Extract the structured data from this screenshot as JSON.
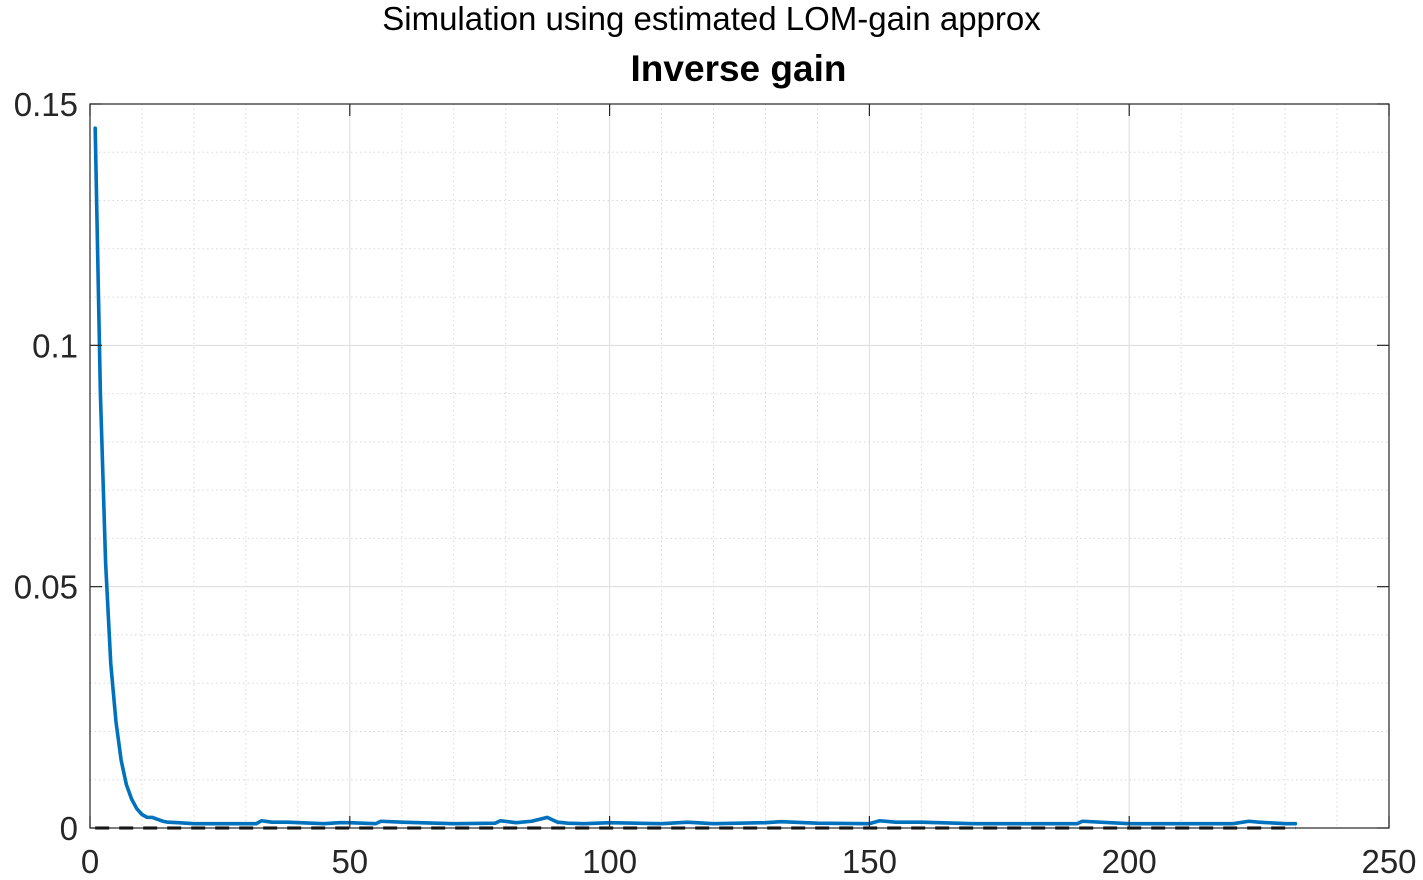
{
  "chart_data": {
    "type": "line",
    "suptitle": "Simulation using estimated LOM-gain approx",
    "title": "Inverse gain",
    "xlabel": "",
    "ylabel": "",
    "xlim": [
      0,
      250
    ],
    "ylim": [
      0,
      0.15
    ],
    "xticks": [
      0,
      50,
      100,
      150,
      200,
      250
    ],
    "yticks": [
      0,
      0.05,
      0.1,
      0.15
    ],
    "xtick_labels": [
      "0",
      "50",
      "100",
      "150",
      "200",
      "250"
    ],
    "ytick_labels": [
      "0",
      "0.05",
      "0.1",
      "0.15"
    ],
    "grid": true,
    "minor_grid": true,
    "series": [
      {
        "color": "#0072BD",
        "style": "solid",
        "x": [
          1,
          2,
          3,
          4,
          5,
          6,
          7,
          8,
          9,
          10,
          11,
          12,
          13,
          14,
          15,
          17,
          20,
          25,
          30,
          32,
          33,
          35,
          38,
          45,
          48,
          50,
          55,
          56,
          60,
          70,
          78,
          79,
          82,
          85,
          88,
          90,
          92,
          95,
          100,
          110,
          115,
          120,
          130,
          133,
          140,
          150,
          152,
          155,
          160,
          170,
          180,
          190,
          191,
          200,
          210,
          220,
          223,
          225,
          230,
          232
        ],
        "y": [
          0.145,
          0.09,
          0.055,
          0.034,
          0.022,
          0.014,
          0.009,
          0.006,
          0.004,
          0.0028,
          0.0022,
          0.0022,
          0.0018,
          0.0014,
          0.0012,
          0.0011,
          0.0009,
          0.0009,
          0.0009,
          0.0009,
          0.0015,
          0.0012,
          0.0012,
          0.0009,
          0.0011,
          0.0011,
          0.0009,
          0.0014,
          0.0012,
          0.0009,
          0.001,
          0.0015,
          0.0011,
          0.0014,
          0.0022,
          0.0012,
          0.001,
          0.0009,
          0.0011,
          0.0009,
          0.0012,
          0.0009,
          0.0011,
          0.0013,
          0.001,
          0.0009,
          0.0015,
          0.0012,
          0.0012,
          0.0009,
          0.0009,
          0.0009,
          0.0014,
          0.0009,
          0.0009,
          0.0009,
          0.0014,
          0.0012,
          0.0009,
          0.0009
        ]
      },
      {
        "color": "#000000",
        "style": "dashed",
        "x": [
          1,
          232
        ],
        "y": [
          0,
          0
        ]
      }
    ]
  }
}
